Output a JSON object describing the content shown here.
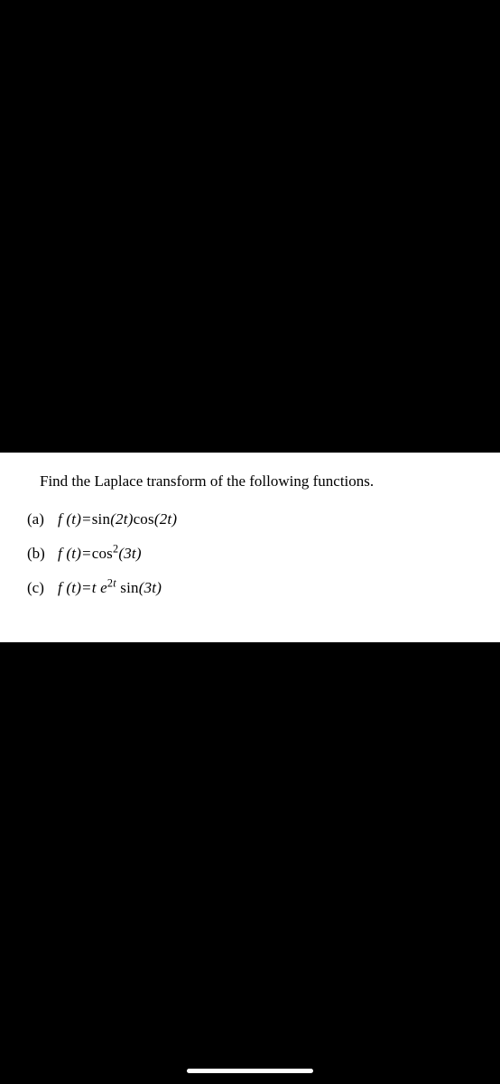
{
  "page": {
    "background_color": "#000000",
    "panel_background_color": "#ffffff",
    "text_color": "#000000",
    "font_family": "Times New Roman",
    "prompt_fontsize": 17,
    "item_fontsize": 17
  },
  "prompt": "Find the Laplace transform of the following functions.",
  "items": [
    {
      "label": "(a)",
      "equation": "f(t)=sin(2t)cos(2t)",
      "display_html": "<i>f</i> (<i>t</i>)=<span class='fn'>sin</span>(2<i>t</i>)<span class='fn'>cos</span>(2<i>t</i>)"
    },
    {
      "label": "(b)",
      "equation": "f(t)=cos^2(3t)",
      "display_html": "<i>f</i> (<i>t</i>)=<span class='fn'>cos</span><sup>2</sup>(3<i>t</i>)"
    },
    {
      "label": "(c)",
      "equation": "f(t)=t e^{2t} sin(3t)",
      "display_html": "<i>f</i> (<i>t</i>)=<i>t</i> <i>e</i><sup>2<i>t</i></sup> <span class='fn'>sin</span>(3<i>t</i>)"
    }
  ]
}
